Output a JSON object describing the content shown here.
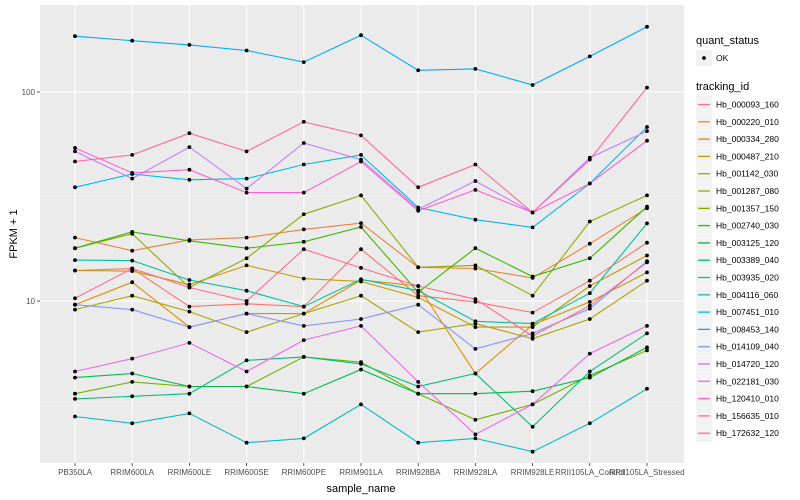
{
  "chart_data": {
    "type": "line",
    "title": "",
    "xlabel": "sample_name",
    "ylabel": "FPKM + 1",
    "yscale": "log10",
    "ylim": [
      1.8,
      280
    ],
    "yticks": [
      10,
      100
    ],
    "ytick_labels": [
      "10",
      "100"
    ],
    "grid": true,
    "legend_position": "right",
    "categories": [
      "PB350LA",
      "RRIM600LA",
      "RRIM600LE",
      "RRIM600SE",
      "RRIM600PE",
      "RRIM901LA",
      "RRIM928BA",
      "RRIM928LA",
      "RRIM928LE",
      "RRII105LA_Control",
      "RRII105LA_Stressed"
    ],
    "shape_legend": {
      "title": "quant_status",
      "entries": [
        "OK"
      ]
    },
    "color_legend_title": "tracking_id",
    "series": [
      {
        "name": "Hb_000093_160",
        "color": "#F8766D",
        "values": [
          14.0,
          14.3,
          9.4,
          9.7,
          9.4,
          17.7,
          10.6,
          9.9,
          8.8,
          12.5,
          19.0
        ]
      },
      {
        "name": "Hb_000220_010",
        "color": "#EC8239",
        "values": [
          20.1,
          17.4,
          19.6,
          20.1,
          22.0,
          23.6,
          14.5,
          14.3,
          12.9,
          18.8,
          27.8
        ]
      },
      {
        "name": "Hb_000334_280",
        "color": "#DB8E00",
        "values": [
          9.6,
          12.3,
          7.5,
          8.7,
          8.7,
          12.6,
          11.8,
          4.5,
          7.7,
          9.9,
          13.7
        ]
      },
      {
        "name": "Hb_000487_210",
        "color": "#C79800",
        "values": [
          14.0,
          13.9,
          12.0,
          14.8,
          12.8,
          12.4,
          10.4,
          7.5,
          7.5,
          11.8,
          16.5
        ]
      },
      {
        "name": "Hb_001142_030",
        "color": "#AFA100",
        "values": [
          9.1,
          10.6,
          8.9,
          7.1,
          8.7,
          10.6,
          7.1,
          7.8,
          6.6,
          8.2,
          12.5
        ]
      },
      {
        "name": "Hb_001287_080",
        "color": "#94A900",
        "values": [
          17.9,
          21.0,
          11.6,
          16.0,
          26.0,
          32.0,
          14.5,
          14.8,
          10.6,
          24.0,
          32.0
        ]
      },
      {
        "name": "Hb_001357_150",
        "color": "#72B000",
        "values": [
          3.6,
          4.1,
          3.9,
          3.9,
          5.4,
          5.1,
          3.6,
          2.7,
          3.2,
          4.4,
          5.8
        ]
      },
      {
        "name": "Hb_002740_030",
        "color": "#39B600",
        "values": [
          17.9,
          21.4,
          19.4,
          17.9,
          19.2,
          22.6,
          11.0,
          17.9,
          13.1,
          16.0,
          28.3
        ]
      },
      {
        "name": "Hb_003125_120",
        "color": "#00BB4E",
        "values": [
          4.3,
          4.5,
          3.9,
          3.9,
          3.6,
          4.7,
          3.6,
          3.6,
          3.7,
          4.3,
          6.0
        ]
      },
      {
        "name": "Hb_003389_040",
        "color": "#00BF7D",
        "values": [
          3.4,
          3.5,
          3.6,
          5.2,
          5.4,
          5.0,
          3.9,
          4.5,
          2.5,
          4.6,
          7.0
        ]
      },
      {
        "name": "Hb_003935_020",
        "color": "#00C1A3",
        "values": [
          15.7,
          15.6,
          12.6,
          11.2,
          9.4,
          12.7,
          11.2,
          8.0,
          7.8,
          10.9,
          23.5
        ]
      },
      {
        "name": "Hb_004116_060",
        "color": "#00BFC4",
        "values": [
          2.8,
          2.6,
          2.9,
          2.1,
          2.2,
          3.2,
          2.1,
          2.2,
          1.9,
          2.6,
          3.8
        ]
      },
      {
        "name": "Hb_007451_010",
        "color": "#00B8E7",
        "values": [
          35.0,
          40.5,
          38.0,
          38.5,
          45.0,
          50.0,
          28.0,
          24.5,
          22.5,
          36.5,
          68.0
        ]
      },
      {
        "name": "Hb_008453_140",
        "color": "#00A9FF",
        "values": [
          185,
          176,
          168,
          158,
          139,
          187,
          127,
          129,
          108,
          148,
          205
        ]
      },
      {
        "name": "Hb_014109_040",
        "color": "#8494FF",
        "values": [
          9.6,
          9.1,
          7.5,
          8.7,
          7.6,
          8.2,
          9.6,
          5.9,
          7.0,
          9.2,
          15.5
        ]
      },
      {
        "name": "Hb_014720_120",
        "color": "#C77CFF",
        "values": [
          52.0,
          38.5,
          54.5,
          34.5,
          57.0,
          47.5,
          27.5,
          37.5,
          26.5,
          48.5,
          65.0
        ]
      },
      {
        "name": "Hb_022181_030",
        "color": "#ED68ED",
        "values": [
          4.6,
          5.3,
          6.3,
          4.6,
          6.5,
          7.6,
          4.1,
          2.3,
          3.2,
          5.6,
          7.6
        ]
      },
      {
        "name": "Hb_120410_010",
        "color": "#FF61CC",
        "values": [
          54.0,
          41.0,
          42.5,
          33.0,
          33.0,
          46.5,
          27.0,
          34.0,
          26.5,
          36.5,
          58.5
        ]
      },
      {
        "name": "Hb_156635_010",
        "color": "#FF68A1",
        "values": [
          46.5,
          50.0,
          63.5,
          52.0,
          72.0,
          62.0,
          35.0,
          45.0,
          26.5,
          47.5,
          105
        ]
      },
      {
        "name": "Hb_172632_120",
        "color": "#FF6C91",
        "values": [
          10.3,
          14.3,
          11.6,
          10.0,
          17.7,
          14.4,
          11.8,
          10.2,
          6.8,
          9.5,
          15.3
        ]
      }
    ]
  }
}
